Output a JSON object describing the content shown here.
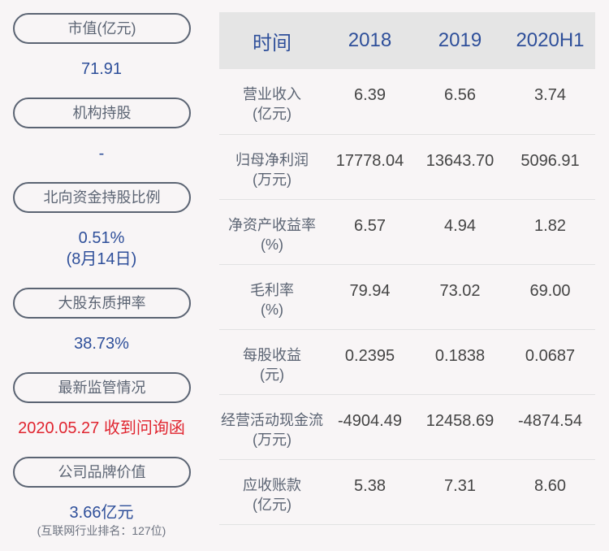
{
  "left": [
    {
      "label": "市值(亿元)",
      "value": "71.91"
    },
    {
      "label": "机构持股",
      "value": "-"
    },
    {
      "label": "北向资金持股比例",
      "value": "0.51%",
      "value2": "(8月14日)"
    },
    {
      "label": "大股东质押率",
      "value": "38.73%"
    },
    {
      "label": "最新监管情况",
      "value": "2020.05.27 收到问询函",
      "value_color": "#e0242f"
    },
    {
      "label": "公司品牌价值",
      "value": "3.66亿元",
      "note": "(互联网行业排名：127位)"
    }
  ],
  "table": {
    "headers": [
      "时间",
      "2018",
      "2019",
      "2020H1"
    ],
    "rows": [
      {
        "label": "营业收入",
        "unit": "(亿元)",
        "values": [
          "6.39",
          "6.56",
          "3.74"
        ]
      },
      {
        "label": "归母净利润",
        "unit": "(万元)",
        "values": [
          "17778.04",
          "13643.70",
          "5096.91"
        ]
      },
      {
        "label": "净资产收益率",
        "unit": "(%)",
        "values": [
          "6.57",
          "4.94",
          "1.82"
        ]
      },
      {
        "label": "毛利率",
        "unit": "(%)",
        "values": [
          "79.94",
          "73.02",
          "69.00"
        ]
      },
      {
        "label": "每股收益",
        "unit": "(元)",
        "values": [
          "0.2395",
          "0.1838",
          "0.0687"
        ]
      },
      {
        "label": "经营活动现金流",
        "unit": "(万元)",
        "values": [
          "-4904.49",
          "12458.69",
          "-4874.54"
        ]
      },
      {
        "label": "应收账款",
        "unit": "(亿元)",
        "values": [
          "5.38",
          "7.31",
          "8.60"
        ]
      }
    ]
  }
}
